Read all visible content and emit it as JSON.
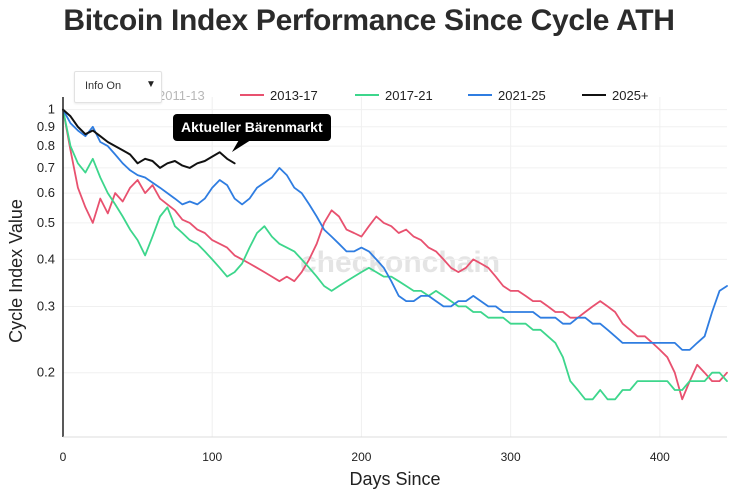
{
  "chart_data": {
    "type": "line",
    "title": "Bitcoin Index Performance Since Cycle ATH",
    "xlabel": "Days Since",
    "ylabel": "Cycle Index Value",
    "xlim": [
      0,
      445
    ],
    "ylim": [
      0.135,
      1.08
    ],
    "yscale": "log",
    "xticks": [
      0,
      100,
      200,
      300,
      400
    ],
    "yticks": [
      {
        "value": 1,
        "label": "1"
      },
      {
        "value": 0.9,
        "label": "0.9"
      },
      {
        "value": 0.8,
        "label": "0.8"
      },
      {
        "value": 0.7,
        "label": "0.7"
      },
      {
        "value": 0.6,
        "label": "0.6"
      },
      {
        "value": 0.5,
        "label": "0.5"
      },
      {
        "value": 0.4,
        "label": "0.4"
      },
      {
        "value": 0.3,
        "label": "0.3"
      },
      {
        "value": 0.2,
        "label": "0.2"
      }
    ],
    "watermark": "checkonchain",
    "annotation": "Aktueller Bärenmarkt",
    "legend_position": "top",
    "series": [
      {
        "name": "2011-13",
        "color": "#cccccc",
        "visible": false,
        "x": [],
        "y": []
      },
      {
        "name": "2013-17",
        "color": "#e8516f",
        "visible": true,
        "x": [
          0,
          5,
          10,
          15,
          20,
          25,
          30,
          35,
          40,
          45,
          50,
          55,
          60,
          65,
          70,
          75,
          80,
          85,
          90,
          95,
          100,
          105,
          110,
          115,
          120,
          125,
          130,
          135,
          140,
          145,
          150,
          155,
          160,
          165,
          170,
          175,
          180,
          185,
          190,
          195,
          200,
          205,
          210,
          215,
          220,
          225,
          230,
          235,
          240,
          245,
          250,
          255,
          260,
          265,
          270,
          275,
          280,
          285,
          290,
          295,
          300,
          305,
          310,
          315,
          320,
          325,
          330,
          335,
          340,
          345,
          350,
          355,
          360,
          365,
          370,
          375,
          380,
          385,
          390,
          395,
          400,
          405,
          410,
          415,
          420,
          425,
          430,
          435,
          440,
          445
        ],
        "y": [
          1.0,
          0.78,
          0.62,
          0.55,
          0.5,
          0.58,
          0.53,
          0.6,
          0.57,
          0.62,
          0.65,
          0.6,
          0.63,
          0.58,
          0.56,
          0.54,
          0.51,
          0.5,
          0.48,
          0.47,
          0.45,
          0.44,
          0.43,
          0.41,
          0.4,
          0.39,
          0.38,
          0.37,
          0.36,
          0.35,
          0.36,
          0.35,
          0.37,
          0.4,
          0.44,
          0.5,
          0.54,
          0.52,
          0.48,
          0.47,
          0.46,
          0.49,
          0.52,
          0.5,
          0.49,
          0.47,
          0.48,
          0.46,
          0.45,
          0.43,
          0.42,
          0.4,
          0.38,
          0.37,
          0.38,
          0.4,
          0.39,
          0.38,
          0.36,
          0.34,
          0.33,
          0.33,
          0.32,
          0.31,
          0.31,
          0.3,
          0.29,
          0.29,
          0.28,
          0.28,
          0.29,
          0.3,
          0.31,
          0.3,
          0.29,
          0.27,
          0.26,
          0.25,
          0.25,
          0.24,
          0.23,
          0.22,
          0.2,
          0.17,
          0.19,
          0.21,
          0.2,
          0.19,
          0.19,
          0.2
        ]
      },
      {
        "name": "2017-21",
        "color": "#3dd68c",
        "visible": true,
        "x": [
          0,
          5,
          10,
          15,
          20,
          25,
          30,
          35,
          40,
          45,
          50,
          55,
          60,
          65,
          70,
          75,
          80,
          85,
          90,
          95,
          100,
          105,
          110,
          115,
          120,
          125,
          130,
          135,
          140,
          145,
          150,
          155,
          160,
          165,
          170,
          175,
          180,
          185,
          190,
          195,
          200,
          205,
          210,
          215,
          220,
          225,
          230,
          235,
          240,
          245,
          250,
          255,
          260,
          265,
          270,
          275,
          280,
          285,
          290,
          295,
          300,
          305,
          310,
          315,
          320,
          325,
          330,
          335,
          340,
          345,
          350,
          355,
          360,
          365,
          370,
          375,
          380,
          385,
          390,
          395,
          400,
          405,
          410,
          415,
          420,
          425,
          430,
          435,
          440,
          445
        ],
        "y": [
          1.0,
          0.8,
          0.72,
          0.68,
          0.74,
          0.66,
          0.6,
          0.56,
          0.52,
          0.48,
          0.45,
          0.41,
          0.46,
          0.52,
          0.55,
          0.49,
          0.47,
          0.45,
          0.44,
          0.42,
          0.4,
          0.38,
          0.36,
          0.37,
          0.39,
          0.43,
          0.47,
          0.49,
          0.46,
          0.44,
          0.43,
          0.42,
          0.4,
          0.38,
          0.36,
          0.34,
          0.33,
          0.34,
          0.35,
          0.36,
          0.37,
          0.38,
          0.37,
          0.36,
          0.36,
          0.35,
          0.34,
          0.33,
          0.33,
          0.32,
          0.33,
          0.32,
          0.31,
          0.3,
          0.3,
          0.29,
          0.29,
          0.28,
          0.28,
          0.28,
          0.27,
          0.27,
          0.27,
          0.26,
          0.26,
          0.25,
          0.24,
          0.22,
          0.19,
          0.18,
          0.17,
          0.17,
          0.18,
          0.17,
          0.17,
          0.18,
          0.18,
          0.19,
          0.19,
          0.19,
          0.19,
          0.19,
          0.18,
          0.18,
          0.19,
          0.19,
          0.19,
          0.2,
          0.2,
          0.19
        ]
      },
      {
        "name": "2021-25",
        "color": "#2f7de1",
        "visible": true,
        "x": [
          0,
          5,
          10,
          15,
          20,
          25,
          30,
          35,
          40,
          45,
          50,
          55,
          60,
          65,
          70,
          75,
          80,
          85,
          90,
          95,
          100,
          105,
          110,
          115,
          120,
          125,
          130,
          135,
          140,
          145,
          150,
          155,
          160,
          165,
          170,
          175,
          180,
          185,
          190,
          195,
          200,
          205,
          210,
          215,
          220,
          225,
          230,
          235,
          240,
          245,
          250,
          255,
          260,
          265,
          270,
          275,
          280,
          285,
          290,
          295,
          300,
          305,
          310,
          315,
          320,
          325,
          330,
          335,
          340,
          345,
          350,
          355,
          360,
          365,
          370,
          375,
          380,
          385,
          390,
          395,
          400,
          405,
          410,
          415,
          420,
          425,
          430,
          435,
          440,
          445
        ],
        "y": [
          1.0,
          0.92,
          0.88,
          0.85,
          0.9,
          0.82,
          0.8,
          0.76,
          0.72,
          0.69,
          0.67,
          0.66,
          0.64,
          0.62,
          0.6,
          0.58,
          0.56,
          0.57,
          0.56,
          0.58,
          0.62,
          0.65,
          0.63,
          0.58,
          0.56,
          0.58,
          0.62,
          0.64,
          0.66,
          0.7,
          0.67,
          0.62,
          0.6,
          0.56,
          0.52,
          0.48,
          0.46,
          0.44,
          0.42,
          0.42,
          0.43,
          0.42,
          0.4,
          0.38,
          0.35,
          0.32,
          0.31,
          0.31,
          0.32,
          0.32,
          0.31,
          0.3,
          0.3,
          0.31,
          0.31,
          0.32,
          0.31,
          0.3,
          0.3,
          0.29,
          0.29,
          0.29,
          0.29,
          0.29,
          0.28,
          0.28,
          0.28,
          0.27,
          0.27,
          0.28,
          0.28,
          0.27,
          0.27,
          0.26,
          0.25,
          0.24,
          0.24,
          0.24,
          0.24,
          0.24,
          0.24,
          0.24,
          0.24,
          0.23,
          0.23,
          0.24,
          0.25,
          0.29,
          0.33,
          0.34
        ]
      },
      {
        "name": "2025+",
        "color": "#111111",
        "visible": true,
        "x": [
          0,
          5,
          10,
          15,
          20,
          25,
          30,
          35,
          40,
          45,
          50,
          55,
          60,
          65,
          70,
          75,
          80,
          85,
          90,
          95,
          100,
          105,
          110,
          115
        ],
        "y": [
          1.0,
          0.96,
          0.9,
          0.86,
          0.88,
          0.85,
          0.82,
          0.8,
          0.78,
          0.76,
          0.72,
          0.74,
          0.73,
          0.7,
          0.72,
          0.73,
          0.71,
          0.7,
          0.72,
          0.73,
          0.75,
          0.77,
          0.74,
          0.72
        ]
      }
    ]
  },
  "ui": {
    "info_toggle_label": "Info On",
    "info_toggle_caret": "▼"
  }
}
